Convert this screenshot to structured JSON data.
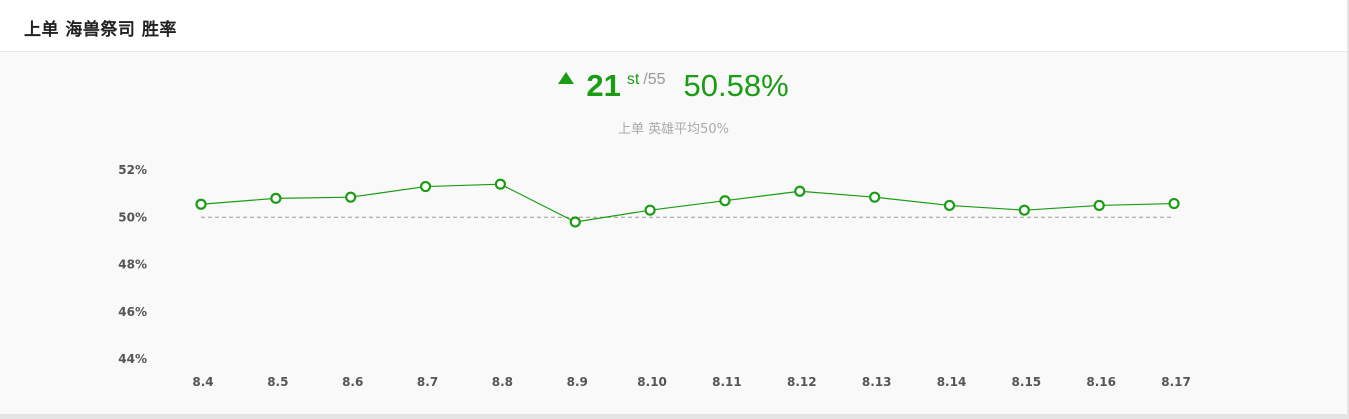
{
  "header": {
    "title": "上单 海兽祭司 胜率"
  },
  "summary": {
    "rank": "21",
    "rank_suffix": "st",
    "rank_total": "/55",
    "win_rate": "50.58%",
    "average_label": "上单 英雄平均50%"
  },
  "colors": {
    "accent": "#1a9c14",
    "reference_line": "#999999"
  },
  "chart_data": {
    "type": "line",
    "categories": [
      "8.4",
      "8.5",
      "8.6",
      "8.7",
      "8.8",
      "8.9",
      "8.10",
      "8.11",
      "8.12",
      "8.13",
      "8.14",
      "8.15",
      "8.16",
      "8.17"
    ],
    "series": [
      {
        "values": [
          50.55,
          50.8,
          50.85,
          51.3,
          51.4,
          49.8,
          50.3,
          50.7,
          51.1,
          50.85,
          50.5,
          50.3,
          50.5,
          50.58
        ]
      }
    ],
    "reference_value": 50,
    "yticks": [
      "52%",
      "50%",
      "48%",
      "46%",
      "44%"
    ],
    "ylim": [
      44,
      52
    ],
    "grid": false
  }
}
